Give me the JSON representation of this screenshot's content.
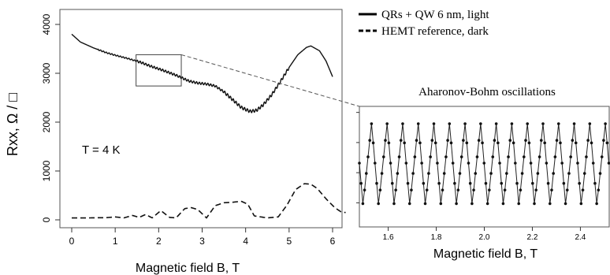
{
  "chart_data": [
    {
      "type": "line",
      "xlabel": "Magnetic field B, T",
      "ylabel": "Rxx, Ω / □",
      "annotation": "T = 4 K",
      "xlim": [
        0,
        6.3
      ],
      "ylim": [
        -100,
        4100
      ],
      "x_ticks": [
        0,
        1,
        2,
        3,
        4,
        5,
        6
      ],
      "y_ticks": [
        0,
        1000,
        2000,
        3000,
        4000
      ],
      "legend_position": "top-right",
      "series": [
        {
          "name": "QRs + QW 6 nm, light",
          "line_style": "solid",
          "x": [
            0.0,
            0.2,
            0.5,
            0.8,
            1.0,
            1.3,
            1.6,
            1.8,
            2.1,
            2.4,
            2.7,
            2.9,
            3.1,
            3.3,
            3.5,
            3.7,
            3.9,
            4.1,
            4.25,
            4.4,
            4.6,
            4.8,
            5.0,
            5.2,
            5.4,
            5.5,
            5.7,
            5.85,
            6.0
          ],
          "y": [
            3800,
            3640,
            3520,
            3420,
            3370,
            3300,
            3220,
            3150,
            3060,
            2960,
            2840,
            2800,
            2780,
            2740,
            2620,
            2460,
            2300,
            2220,
            2240,
            2350,
            2560,
            2830,
            3120,
            3380,
            3530,
            3560,
            3460,
            3250,
            2930
          ]
        },
        {
          "name": "HEMT reference, dark",
          "line_style": "dashed",
          "x": [
            0.0,
            0.4,
            0.8,
            1.0,
            1.2,
            1.4,
            1.55,
            1.7,
            1.85,
            2.05,
            2.25,
            2.4,
            2.6,
            2.75,
            2.9,
            3.1,
            3.3,
            3.5,
            3.7,
            3.9,
            4.05,
            4.2,
            4.5,
            4.75,
            4.95,
            5.15,
            5.35,
            5.5,
            5.65,
            5.85,
            6.05,
            6.2,
            6.3
          ],
          "y": [
            40,
            40,
            45,
            60,
            40,
            90,
            50,
            110,
            40,
            190,
            50,
            40,
            230,
            250,
            210,
            40,
            290,
            350,
            360,
            380,
            320,
            80,
            40,
            60,
            300,
            620,
            740,
            730,
            640,
            430,
            250,
            160,
            150
          ]
        }
      ]
    },
    {
      "type": "line",
      "title": "Aharonov-Bohm oscillations",
      "xlabel": "Magnetic field B, T",
      "xlim": [
        1.48,
        2.52
      ],
      "x_ticks": [
        1.6,
        1.8,
        2.0,
        2.2,
        2.4
      ],
      "x_tick_labels": [
        "1.6",
        "1.8",
        "2.0",
        "2.2",
        "2.4"
      ],
      "oscillation_period_T": 0.0649,
      "oscillation_start_T": 1.495,
      "markers": "points",
      "peak_fraction": 0.86,
      "trough_fraction": 0.18,
      "y_ticks_labeled": false
    }
  ]
}
